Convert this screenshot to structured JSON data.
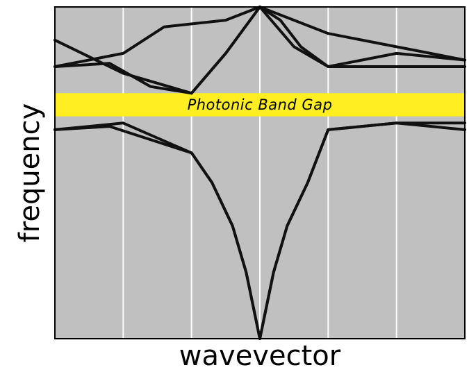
{
  "diagram": {
    "x_label": "wavevector",
    "y_label": "frequency",
    "band_gap_label": "Photonic Band Gap",
    "colors": {
      "plot_background": "#c0c0c0",
      "gridline": "#ffffff",
      "band_gap": "#ffee22",
      "curve": "#111111",
      "frame": "#000000",
      "text": "#000000"
    },
    "gridlines": 5,
    "x_range": [
      0,
      6
    ],
    "y_range": [
      0,
      1
    ],
    "band_gap_range": [
      0.67,
      0.74
    ],
    "curves": [
      {
        "name": "lower-band-1",
        "points": [
          [
            0,
            0.63
          ],
          [
            1,
            0.65
          ],
          [
            2,
            0.56
          ],
          [
            2.3,
            0.47
          ],
          [
            2.6,
            0.34
          ],
          [
            2.8,
            0.2
          ],
          [
            3,
            0
          ],
          [
            3.2,
            0.2
          ],
          [
            3.4,
            0.34
          ],
          [
            3.7,
            0.47
          ],
          [
            4,
            0.63
          ],
          [
            5,
            0.65
          ],
          [
            6,
            0.63
          ]
        ]
      },
      {
        "name": "lower-band-2",
        "points": [
          [
            0,
            0.63
          ],
          [
            0.8,
            0.64
          ],
          [
            2,
            0.56
          ],
          [
            2.3,
            0.47
          ],
          [
            2.6,
            0.34
          ],
          [
            2.8,
            0.2
          ],
          [
            3,
            0
          ],
          [
            3.2,
            0.2
          ],
          [
            3.4,
            0.34
          ],
          [
            3.7,
            0.47
          ],
          [
            4,
            0.63
          ],
          [
            5,
            0.65
          ],
          [
            6,
            0.65
          ]
        ]
      },
      {
        "name": "upper-band-1",
        "points": [
          [
            0,
            0.82
          ],
          [
            1,
            0.86
          ],
          [
            1.6,
            0.94
          ],
          [
            2.5,
            0.96
          ],
          [
            3,
            1.0
          ],
          [
            3.5,
            0.96
          ],
          [
            4,
            0.92
          ],
          [
            5,
            0.88
          ],
          [
            6,
            0.84
          ]
        ]
      },
      {
        "name": "upper-band-2",
        "points": [
          [
            0,
            0.9
          ],
          [
            1,
            0.8
          ],
          [
            2,
            0.74
          ],
          [
            2.5,
            0.86
          ],
          [
            3,
            1.0
          ],
          [
            3.5,
            0.88
          ],
          [
            4,
            0.82
          ],
          [
            5,
            0.82
          ],
          [
            6,
            0.82
          ]
        ]
      },
      {
        "name": "upper-band-3",
        "points": [
          [
            0,
            0.82
          ],
          [
            0.8,
            0.83
          ],
          [
            1.4,
            0.76
          ],
          [
            2,
            0.74
          ],
          [
            2.5,
            0.86
          ],
          [
            3,
            1.0
          ],
          [
            3.3,
            0.96
          ],
          [
            3.6,
            0.88
          ],
          [
            4,
            0.82
          ],
          [
            5,
            0.86
          ],
          [
            6,
            0.84
          ]
        ]
      }
    ]
  }
}
